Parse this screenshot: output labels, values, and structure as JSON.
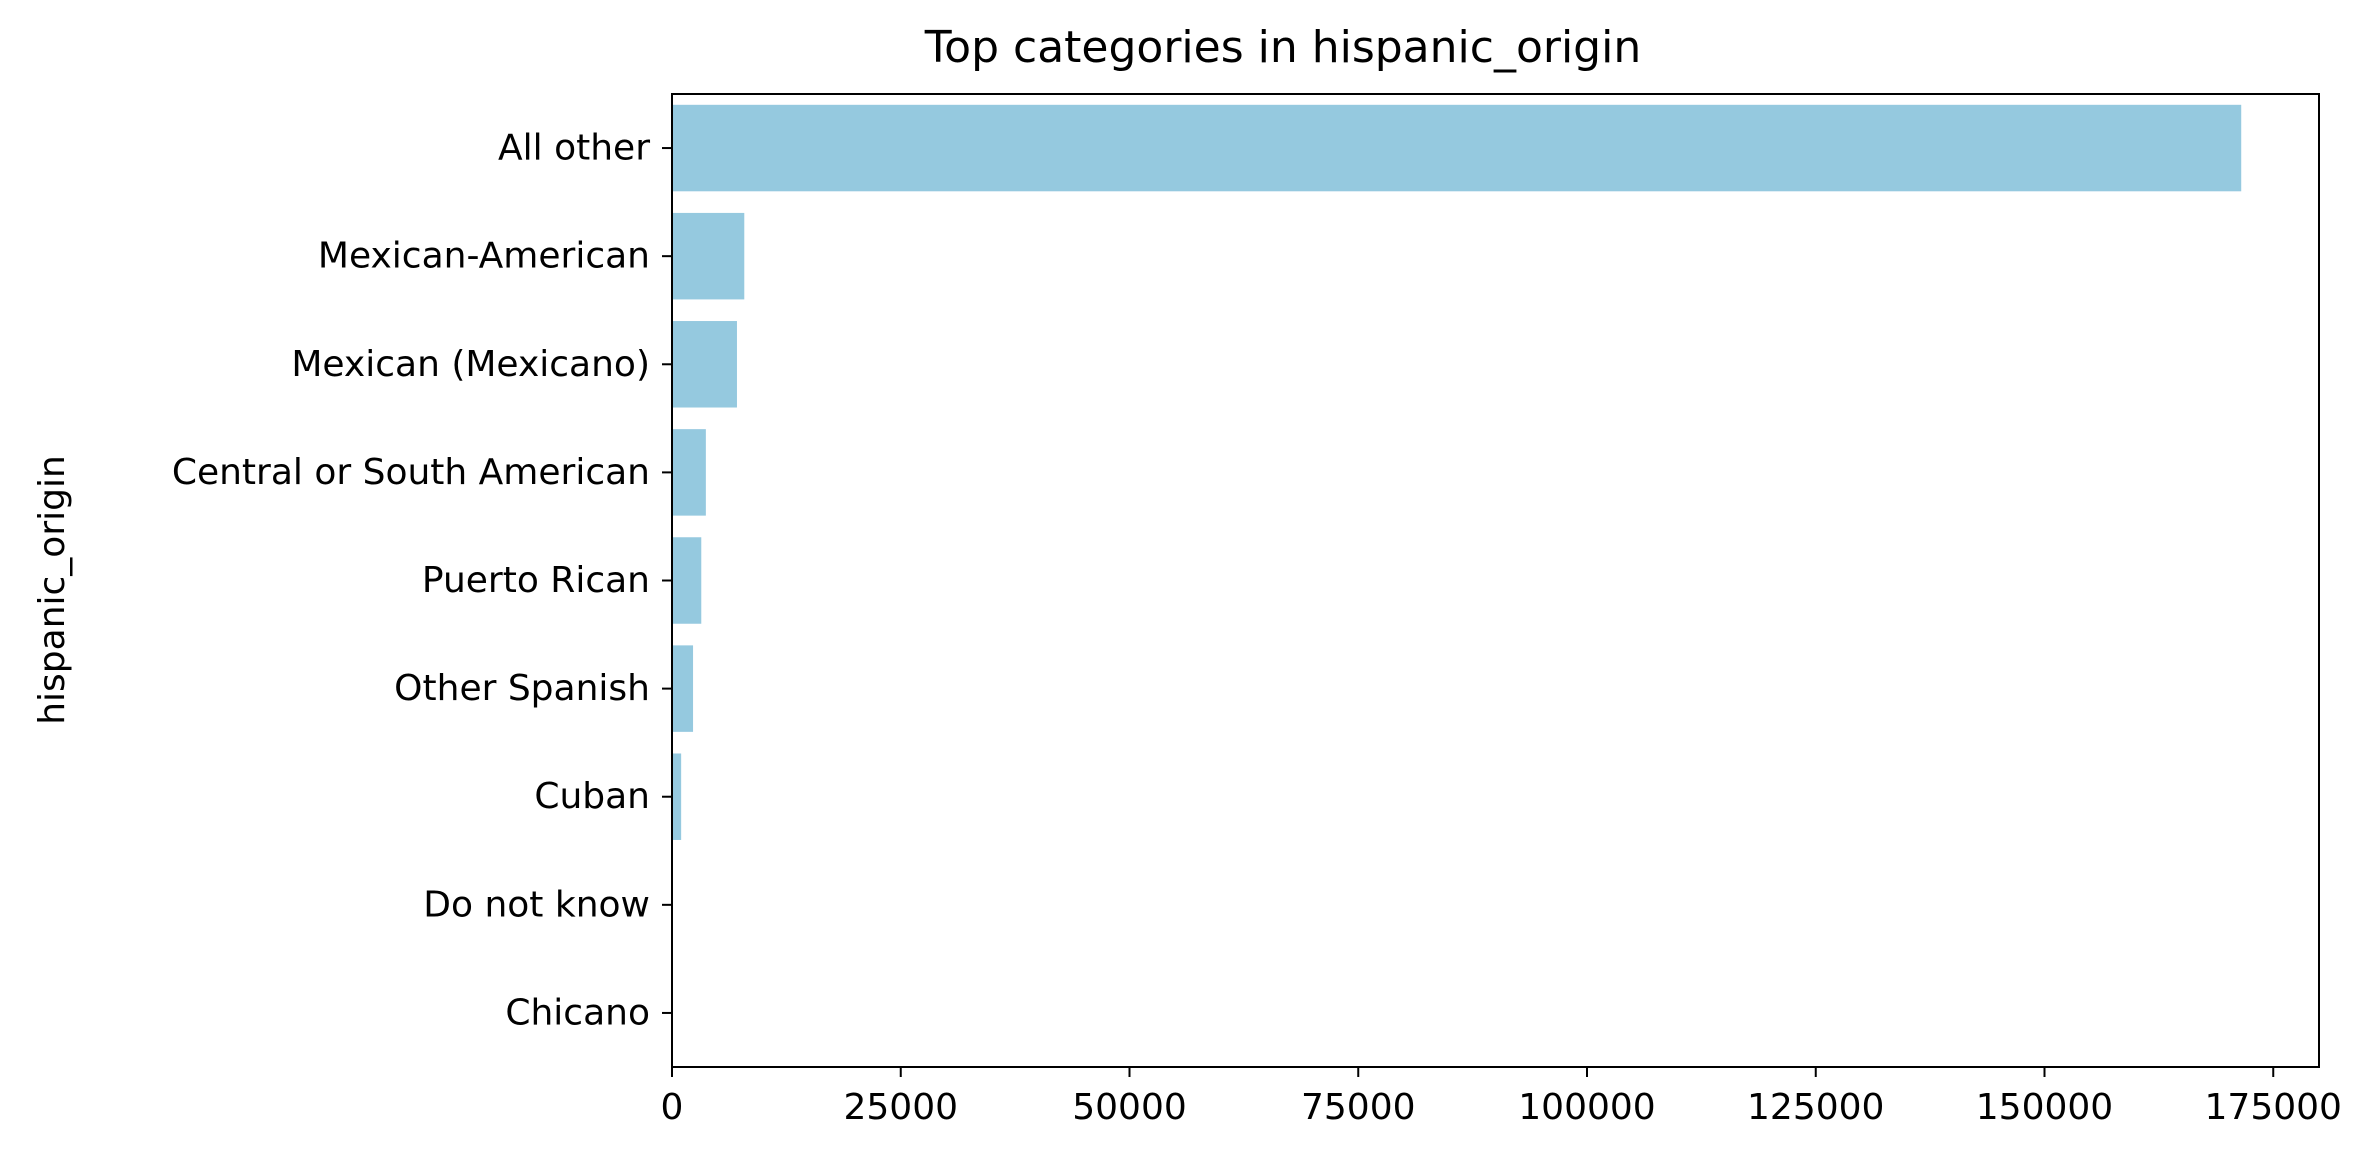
{
  "chart_data": {
    "type": "bar",
    "orientation": "horizontal",
    "title": "Top categories in hispanic_origin",
    "xlabel": "",
    "ylabel": "hispanic_origin",
    "categories": [
      "All other",
      "Mexican-American",
      "Mexican (Mexicano)",
      "Central or South American",
      "Puerto Rican",
      "Other Spanish",
      "Cuban",
      "Do not know",
      "Chicano"
    ],
    "values": [
      171500,
      7900,
      7100,
      3700,
      3200,
      2300,
      1000,
      0,
      0
    ],
    "xlim": [
      0,
      180000
    ],
    "xticks": [
      "0",
      "25000",
      "50000",
      "75000",
      "100000",
      "125000",
      "150000",
      "175000"
    ],
    "xtick_values": [
      0,
      25000,
      50000,
      75000,
      100000,
      125000,
      150000,
      175000
    ],
    "bar_color": "#95c9df",
    "grid": false,
    "legend": "none"
  }
}
